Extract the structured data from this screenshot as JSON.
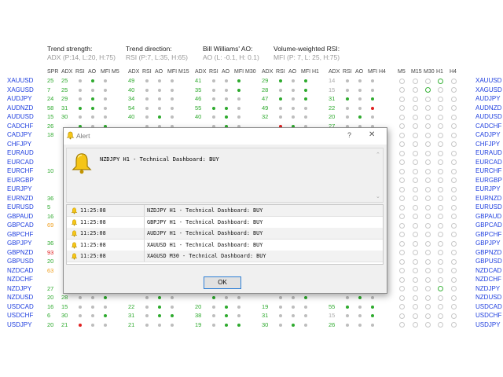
{
  "headers": [
    {
      "title": "Trend strength:",
      "sub": "ADX (P:14, L:20, H:75)"
    },
    {
      "title": "Trend direction:",
      "sub": "RSI (P:7, L:35, H:65)"
    },
    {
      "title": "Bill Williams' AO:",
      "sub": "AO (L: -0.1, H: 0.1)"
    },
    {
      "title": "Volume-weighted RSI:",
      "sub": "MFI (P: 7, L: 25, H:75)"
    }
  ],
  "column_headers": {
    "spr": "SPR",
    "groups": [
      [
        "ADX",
        "RSI",
        "AO",
        "MFI M5"
      ],
      [
        "ADX",
        "RSI",
        "AO",
        "MFI M15"
      ],
      [
        "ADX",
        "RSI",
        "AO",
        "MFI M30"
      ],
      [
        "ADX",
        "RSI",
        "AO",
        "MFI H1"
      ],
      [
        "ADX",
        "RSI",
        "AO",
        "MFI H4"
      ]
    ],
    "timeframes": [
      "M5",
      "M15",
      "M30",
      "H1",
      "H4"
    ]
  },
  "rows": [
    {
      "symbol": "XAUUSD",
      "spr": "25",
      "adx": [
        "25",
        "49",
        "41",
        "29",
        "14"
      ]
    },
    {
      "symbol": "XAGUSD",
      "spr": "7",
      "adx": [
        "25",
        "40",
        "35",
        "28",
        "15"
      ]
    },
    {
      "symbol": "AUDJPY",
      "spr": "24",
      "adx": [
        "29",
        "34",
        "46",
        "47",
        "31"
      ]
    },
    {
      "symbol": "AUDNZD",
      "spr": "58",
      "adx": [
        "31",
        "54",
        "55",
        "49",
        "22"
      ]
    },
    {
      "symbol": "AUDUSD",
      "spr": "15",
      "adx": [
        "30",
        "40",
        "40",
        "32",
        "20"
      ]
    },
    {
      "symbol": "CADCHF",
      "spr": "26",
      "adx": [
        "",
        "",
        "",
        "",
        "27"
      ]
    },
    {
      "symbol": "CADJPY",
      "spr": "18",
      "adx": [
        "",
        "",
        "",
        "",
        ""
      ]
    },
    {
      "symbol": "CHFJPY",
      "spr": "",
      "adx": [
        "",
        "",
        "",
        "",
        ""
      ]
    },
    {
      "symbol": "EURAUD",
      "spr": "",
      "adx": [
        "",
        "",
        "",
        "",
        ""
      ]
    },
    {
      "symbol": "EURCAD",
      "spr": "",
      "adx": [
        "",
        "",
        "",
        "",
        ""
      ]
    },
    {
      "symbol": "EURCHF",
      "spr": "10",
      "adx": [
        "",
        "",
        "",
        "",
        ""
      ]
    },
    {
      "symbol": "EURGBP",
      "spr": "",
      "adx": [
        "",
        "",
        "",
        "",
        ""
      ]
    },
    {
      "symbol": "EURJPY",
      "spr": "",
      "adx": [
        "",
        "",
        "",
        "",
        ""
      ]
    },
    {
      "symbol": "EURNZD",
      "spr": "36",
      "adx": [
        "",
        "",
        "",
        "",
        ""
      ]
    },
    {
      "symbol": "EURUSD",
      "spr": "5",
      "adx": [
        "",
        "",
        "",
        "",
        ""
      ]
    },
    {
      "symbol": "GBPAUD",
      "spr": "16",
      "adx": [
        "",
        "",
        "",
        "",
        ""
      ]
    },
    {
      "symbol": "GBPCAD",
      "spr": "69",
      "adx": [
        "",
        "",
        "",
        "",
        ""
      ]
    },
    {
      "symbol": "GBPCHF",
      "spr": "",
      "adx": [
        "",
        "",
        "",
        "",
        ""
      ]
    },
    {
      "symbol": "GBPJPY",
      "spr": "36",
      "adx": [
        "",
        "",
        "",
        "",
        ""
      ]
    },
    {
      "symbol": "GBPNZD",
      "spr": "93",
      "adx": [
        "",
        "",
        "",
        "",
        ""
      ]
    },
    {
      "symbol": "GBPUSD",
      "spr": "20",
      "adx": [
        "",
        "",
        "",
        "",
        ""
      ]
    },
    {
      "symbol": "NZDCAD",
      "spr": "63",
      "adx": [
        "",
        "",
        "",
        "",
        ""
      ]
    },
    {
      "symbol": "NZDCHF",
      "spr": "",
      "adx": [
        "",
        "",
        "",
        "",
        ""
      ]
    },
    {
      "symbol": "NZDJPY",
      "spr": "27",
      "adx": [
        "",
        "",
        "",
        "",
        ""
      ]
    },
    {
      "symbol": "NZDUSD",
      "spr": "20",
      "adx": [
        "28",
        "",
        "",
        "",
        ""
      ]
    },
    {
      "symbol": "USDCAD",
      "spr": "16",
      "adx": [
        "15",
        "22",
        "20",
        "19",
        "55"
      ]
    },
    {
      "symbol": "USDCHF",
      "spr": "6",
      "adx": [
        "30",
        "31",
        "38",
        "31",
        "15"
      ]
    },
    {
      "symbol": "USDJPY",
      "spr": "20",
      "adx": [
        "21",
        "21",
        "19",
        "30",
        "26"
      ]
    }
  ],
  "dialog": {
    "title": "Alert",
    "help_glyph": "?",
    "close_glyph": "✕",
    "message": "NZDJPY H1 - Technical Dashboard: BUY",
    "history": [
      {
        "time": "11:25:08",
        "text": "NZDJPY H1 - Technical Dashboard: BUY"
      },
      {
        "time": "11:25:08",
        "text": "GBPJPY H1 - Technical Dashboard: BUY"
      },
      {
        "time": "11:25:08",
        "text": "AUDJPY H1 - Technical Dashboard: BUY"
      },
      {
        "time": "11:25:08",
        "text": "XAUUSD H1 - Technical Dashboard: BUY"
      },
      {
        "time": "11:25:08",
        "text": "XAGUSD M30 - Technical Dashboard: BUY"
      }
    ],
    "ok_label": "OK"
  },
  "colors": {
    "symbol": "#1f3fdf",
    "green": "#2eaa2e",
    "orange": "#f0a020",
    "red": "#e02020",
    "grey": "#bdbdbd"
  }
}
